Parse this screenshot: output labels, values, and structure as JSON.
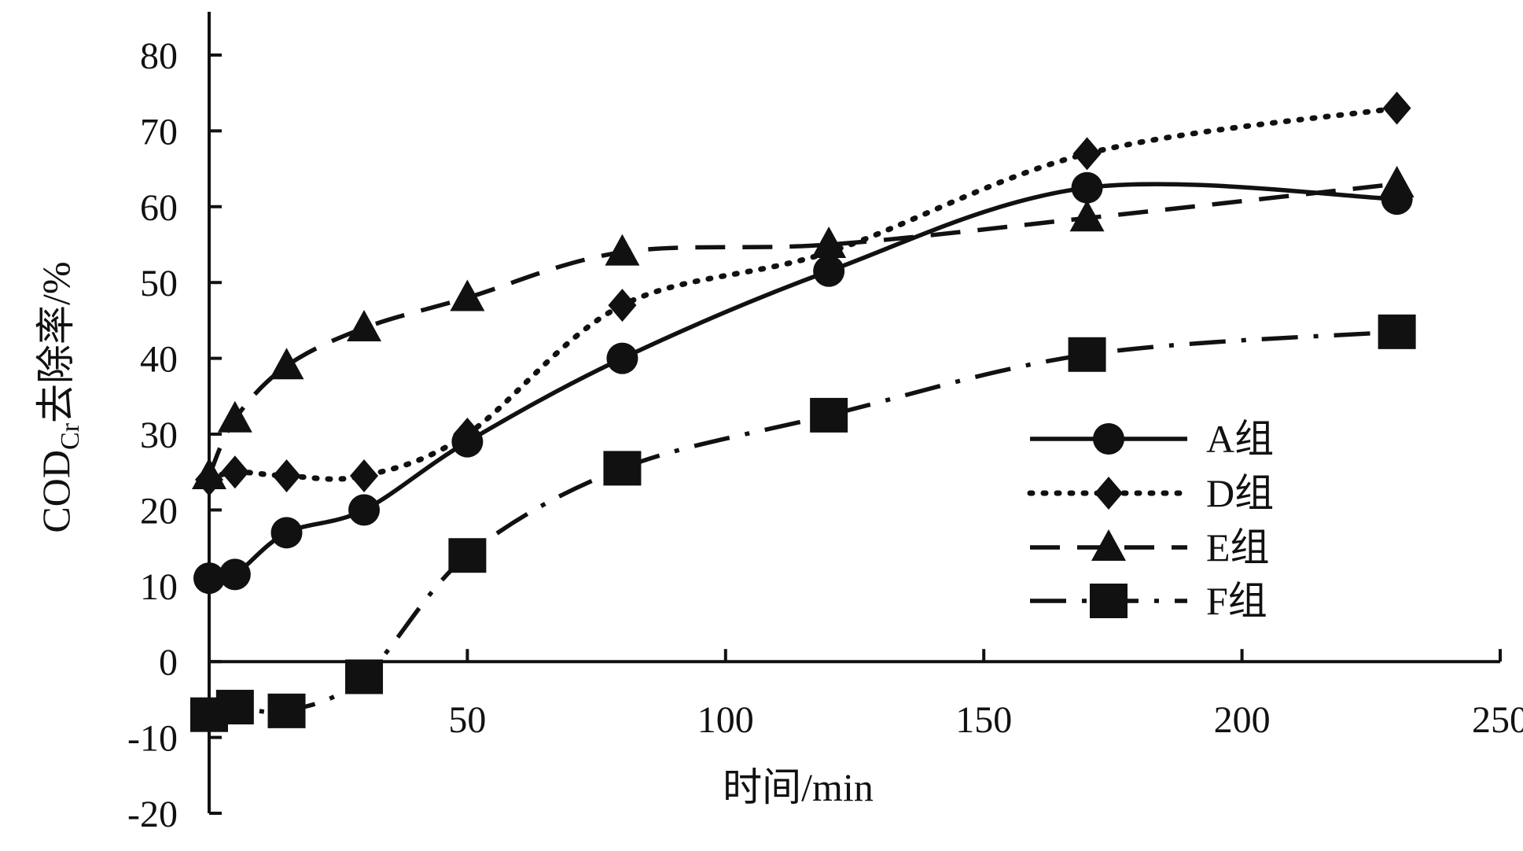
{
  "chart_data": {
    "type": "line",
    "xlabel": "时间/min",
    "ylabel": {
      "main": "COD",
      "sub": "Cr",
      "rest": "去除率/%"
    },
    "xlim": [
      0,
      250
    ],
    "ylim": [
      -20,
      80
    ],
    "xticks": [
      50,
      100,
      150,
      200,
      250
    ],
    "yticks": [
      -20,
      -10,
      0,
      10,
      20,
      30,
      40,
      50,
      60,
      70,
      80
    ],
    "grid": false,
    "legend_position": "center-right",
    "series": [
      {
        "name": "A组",
        "marker": "circle",
        "dash": "solid",
        "smooth": true,
        "x": [
          0,
          5,
          15,
          30,
          50,
          80,
          120,
          170,
          230
        ],
        "y": [
          11,
          11.5,
          17,
          20,
          29,
          40,
          51.5,
          62.5,
          61
        ]
      },
      {
        "name": "D组",
        "marker": "diamond",
        "dash": "dotted",
        "smooth": true,
        "x": [
          0,
          5,
          15,
          30,
          50,
          80,
          120,
          170,
          230
        ],
        "y": [
          24,
          25,
          24.5,
          24.5,
          30,
          47,
          54,
          67,
          73
        ]
      },
      {
        "name": "E组",
        "marker": "triangle",
        "dash": "dashed",
        "smooth": true,
        "x": [
          0,
          5,
          15,
          30,
          50,
          80,
          120,
          170,
          230
        ],
        "y": [
          24.5,
          32,
          39,
          44,
          48,
          54,
          55,
          58.5,
          63
        ]
      },
      {
        "name": "F组",
        "marker": "square",
        "dash": "dashdot",
        "smooth": true,
        "x": [
          0,
          5,
          15,
          30,
          50,
          80,
          120,
          170,
          230
        ],
        "y": [
          -7,
          -6,
          -6.5,
          -2,
          14,
          25.5,
          32.5,
          40.5,
          43.5
        ]
      }
    ]
  }
}
